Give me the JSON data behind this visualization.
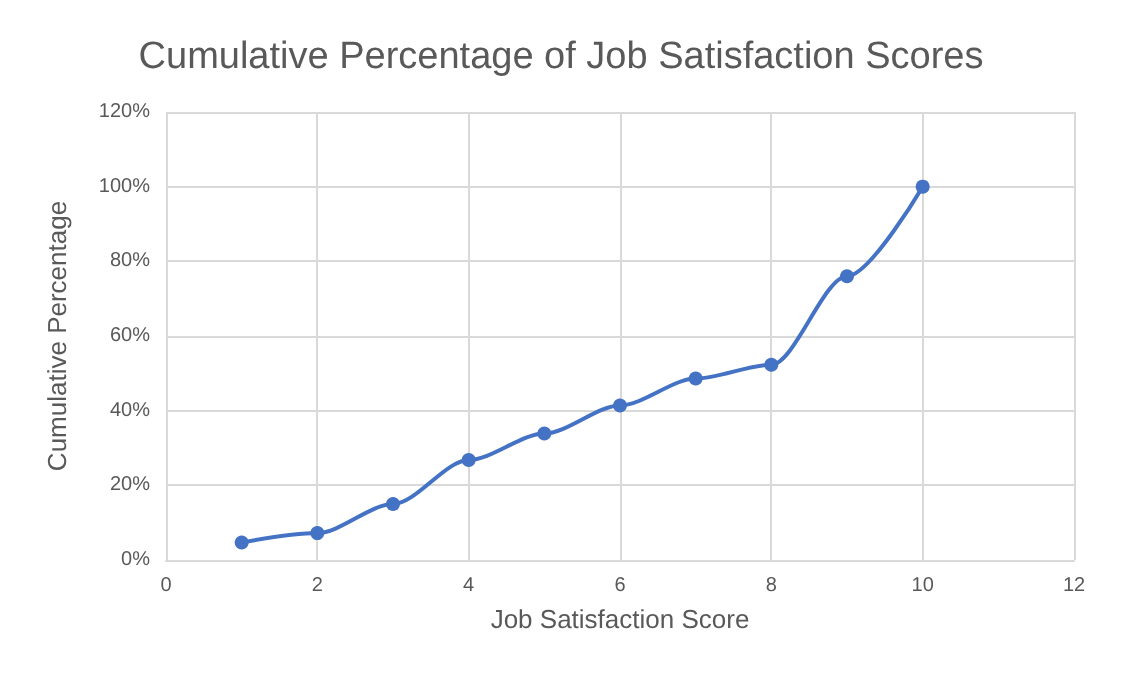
{
  "chart_data": {
    "type": "line",
    "title": "Cumulative Percentage of Job Satisfaction Scores",
    "xlabel": "Job Satisfaction Score",
    "ylabel": "Cumulative Percentage",
    "x": [
      1,
      2,
      3,
      4,
      5,
      6,
      7,
      8,
      9,
      10
    ],
    "series": [
      {
        "color": "#4472c4",
        "values": [
          4.7,
          7.2,
          15,
          26.8,
          33.9,
          41.4,
          48.6,
          52.3,
          76,
          100
        ]
      }
    ],
    "xlim": [
      0,
      12
    ],
    "xticks": [
      0,
      2,
      4,
      6,
      8,
      10,
      12
    ],
    "ylim": [
      0,
      120
    ],
    "yticks": [
      {
        "value": 0,
        "label": "0%"
      },
      {
        "value": 20,
        "label": "20%"
      },
      {
        "value": 40,
        "label": "40%"
      },
      {
        "value": 60,
        "label": "60%"
      },
      {
        "value": 80,
        "label": "80%"
      },
      {
        "value": 100,
        "label": "100%"
      },
      {
        "value": 120,
        "label": "120%"
      }
    ],
    "grid": true,
    "marker": "circle",
    "line_style": "solid"
  }
}
